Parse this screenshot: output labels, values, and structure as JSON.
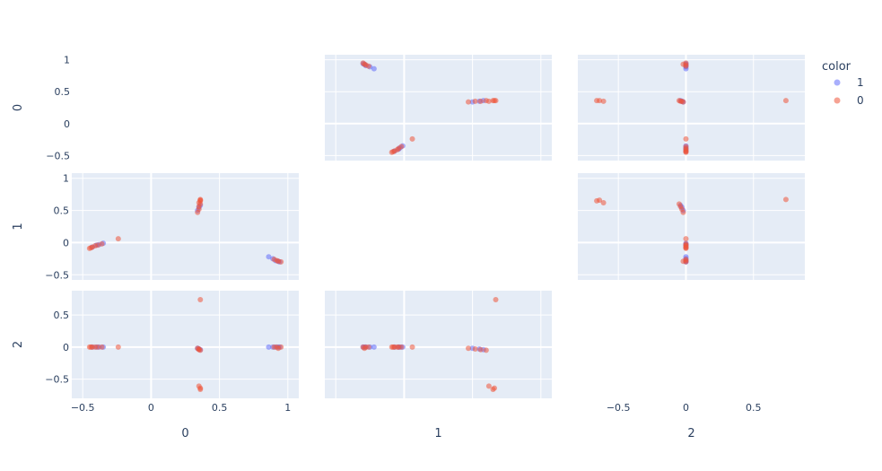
{
  "chart_data": {
    "type": "scatter",
    "subtype": "scatter-matrix",
    "dimensions": [
      "0",
      "1",
      "2"
    ],
    "legend": {
      "title": "color",
      "placement": "right",
      "entries": [
        {
          "name": "1",
          "color": "#636efa"
        },
        {
          "name": "0",
          "color": "#ef553b"
        }
      ]
    },
    "axis_ranges": {
      "0": [
        -0.58,
        1.08
      ],
      "1": [
        -0.58,
        1.08
      ],
      "2": [
        -0.8,
        0.88
      ]
    },
    "ticks": {
      "0": [
        -0.5,
        0,
        0.5,
        1
      ],
      "1": [
        -0.5,
        0,
        0.5,
        1
      ],
      "2": [
        -0.5,
        0,
        0.5
      ]
    },
    "tick_labels": {
      "0": [
        "−0.5",
        "0",
        "0.5",
        "1"
      ],
      "1": [
        "−0.5",
        "0",
        "0.5",
        "1"
      ],
      "2": [
        "−0.5",
        "0",
        "0.5"
      ]
    },
    "grid": true,
    "background": "#e5ecf6",
    "series": [
      {
        "name": "1",
        "color": "#636efa",
        "points": [
          {
            "d0": 0.91,
            "d1": -0.28,
            "d2": 0.0
          },
          {
            "d0": 0.93,
            "d1": -0.29,
            "d2": 0.0
          },
          {
            "d0": 0.89,
            "d1": -0.25,
            "d2": 0.0
          },
          {
            "d0": 0.94,
            "d1": -0.3,
            "d2": 0.0
          },
          {
            "d0": 0.86,
            "d1": -0.22,
            "d2": 0.0
          },
          {
            "d0": -0.35,
            "d1": -0.01,
            "d2": 0.0
          },
          {
            "d0": -0.38,
            "d1": -0.03,
            "d2": 0.0
          },
          {
            "d0": -0.4,
            "d1": -0.04,
            "d2": 0.0
          },
          {
            "d0": -0.43,
            "d1": -0.07,
            "d2": 0.0
          },
          {
            "d0": 0.34,
            "d1": 0.5,
            "d2": -0.02
          },
          {
            "d0": 0.35,
            "d1": 0.55,
            "d2": -0.03
          },
          {
            "d0": 0.36,
            "d1": 0.58,
            "d2": -0.04
          }
        ]
      },
      {
        "name": "0",
        "color": "#ef553b",
        "points": [
          {
            "d0": 0.36,
            "d1": 0.67,
            "d2": 0.74
          },
          {
            "d0": 0.36,
            "d1": 0.66,
            "d2": -0.64
          },
          {
            "d0": 0.36,
            "d1": 0.65,
            "d2": -0.66
          },
          {
            "d0": 0.35,
            "d1": 0.62,
            "d2": -0.61
          },
          {
            "d0": 0.34,
            "d1": 0.47,
            "d2": -0.02
          },
          {
            "d0": 0.35,
            "d1": 0.52,
            "d2": -0.03
          },
          {
            "d0": 0.35,
            "d1": 0.56,
            "d2": -0.04
          },
          {
            "d0": 0.36,
            "d1": 0.6,
            "d2": -0.05
          },
          {
            "d0": -0.24,
            "d1": 0.06,
            "d2": 0.0
          },
          {
            "d0": -0.36,
            "d1": -0.02,
            "d2": 0.0
          },
          {
            "d0": -0.39,
            "d1": -0.04,
            "d2": 0.0
          },
          {
            "d0": -0.41,
            "d1": -0.05,
            "d2": 0.0
          },
          {
            "d0": -0.43,
            "d1": -0.07,
            "d2": 0.0
          },
          {
            "d0": -0.44,
            "d1": -0.08,
            "d2": 0.0
          },
          {
            "d0": -0.45,
            "d1": -0.09,
            "d2": 0.0
          },
          {
            "d0": 0.9,
            "d1": -0.26,
            "d2": 0.0
          },
          {
            "d0": 0.92,
            "d1": -0.28,
            "d2": 0.0
          },
          {
            "d0": 0.95,
            "d1": -0.3,
            "d2": 0.0
          },
          {
            "d0": 0.93,
            "d1": -0.29,
            "d2": -0.02
          }
        ]
      }
    ]
  }
}
